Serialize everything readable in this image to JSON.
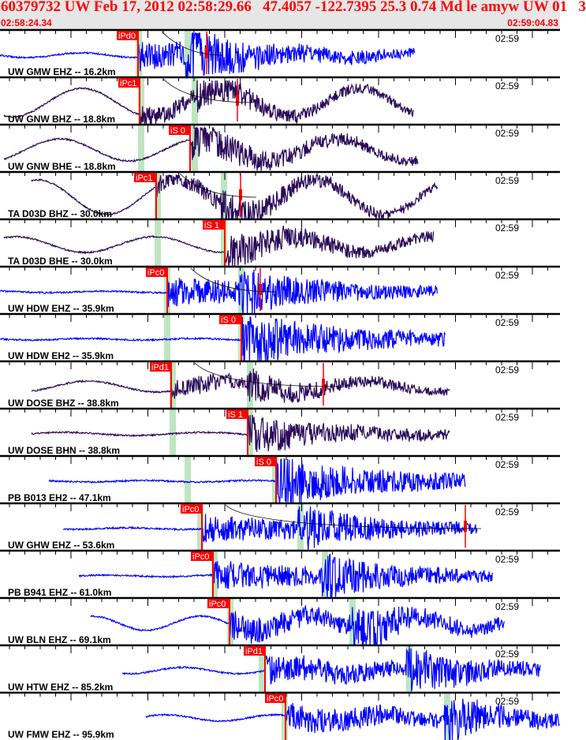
{
  "header": {
    "title": "60379732 UW Feb 17, 2012 02:58:29.66   47.4057 -122.7395 25.3 0.74 Md le amyw UW 01   3",
    "start_time": "02:58:24.34",
    "end_time": "02:59:04.83"
  },
  "colors": {
    "header_text": "#ff0000",
    "short_period": "#0000ff",
    "broadband": "#2a0a5a",
    "pick": "#ff0000",
    "window": "#bde6c0"
  },
  "chart_data": {
    "type": "line",
    "title": "",
    "xlim": [
      "02:58:24.34",
      "02:59:04.83"
    ],
    "grid": false,
    "series": [
      {
        "name": "UW GMW EHZ -- 16.2km",
        "pick": "iPd0",
        "time_label": "02:59"
      },
      {
        "name": "UW GNW BHZ -- 18.8km",
        "pick": "iPc1",
        "time_label": "02:59"
      },
      {
        "name": "UW GNW BHE -- 18.8km",
        "pick": "iS 0",
        "time_label": "02:59"
      },
      {
        "name": "TA D03D BHZ -- 30.0km",
        "pick": "iPc1",
        "time_label": "02:59"
      },
      {
        "name": "TA D03D BHE -- 30.0km",
        "pick": "iS 1",
        "time_label": "02:59"
      },
      {
        "name": "UW HDW EHZ -- 35.9km",
        "pick": "iPc0",
        "time_label": "02:59"
      },
      {
        "name": "UW HDW EH2 -- 35.9km",
        "pick": "iS 0",
        "time_label": "02:59"
      },
      {
        "name": "UW DOSE BHZ -- 38.8km",
        "pick": "iPd1",
        "time_label": "02:59"
      },
      {
        "name": "UW DOSE BHN -- 38.8km",
        "pick": "iS 1",
        "time_label": "02:59"
      },
      {
        "name": "PB B013 EH2 -- 47.1km",
        "pick": "iS 0",
        "time_label": "02:59"
      },
      {
        "name": "UW GHW EHZ -- 53.6km",
        "pick": "iPc0",
        "time_label": "02:59"
      },
      {
        "name": "PB B941 EHZ -- 61.0km",
        "pick": "iPc0",
        "time_label": "02:59"
      },
      {
        "name": "UW BLN EHZ -- 69.1km",
        "pick": "iPc0",
        "time_label": "02:59"
      },
      {
        "name": "UW HTW EHZ -- 85.2km",
        "pick": "iPd1",
        "time_label": "02:59"
      },
      {
        "name": "UW FMW EHZ -- 95.9km",
        "pick": "iPc0",
        "time_label": "02:59"
      }
    ]
  }
}
